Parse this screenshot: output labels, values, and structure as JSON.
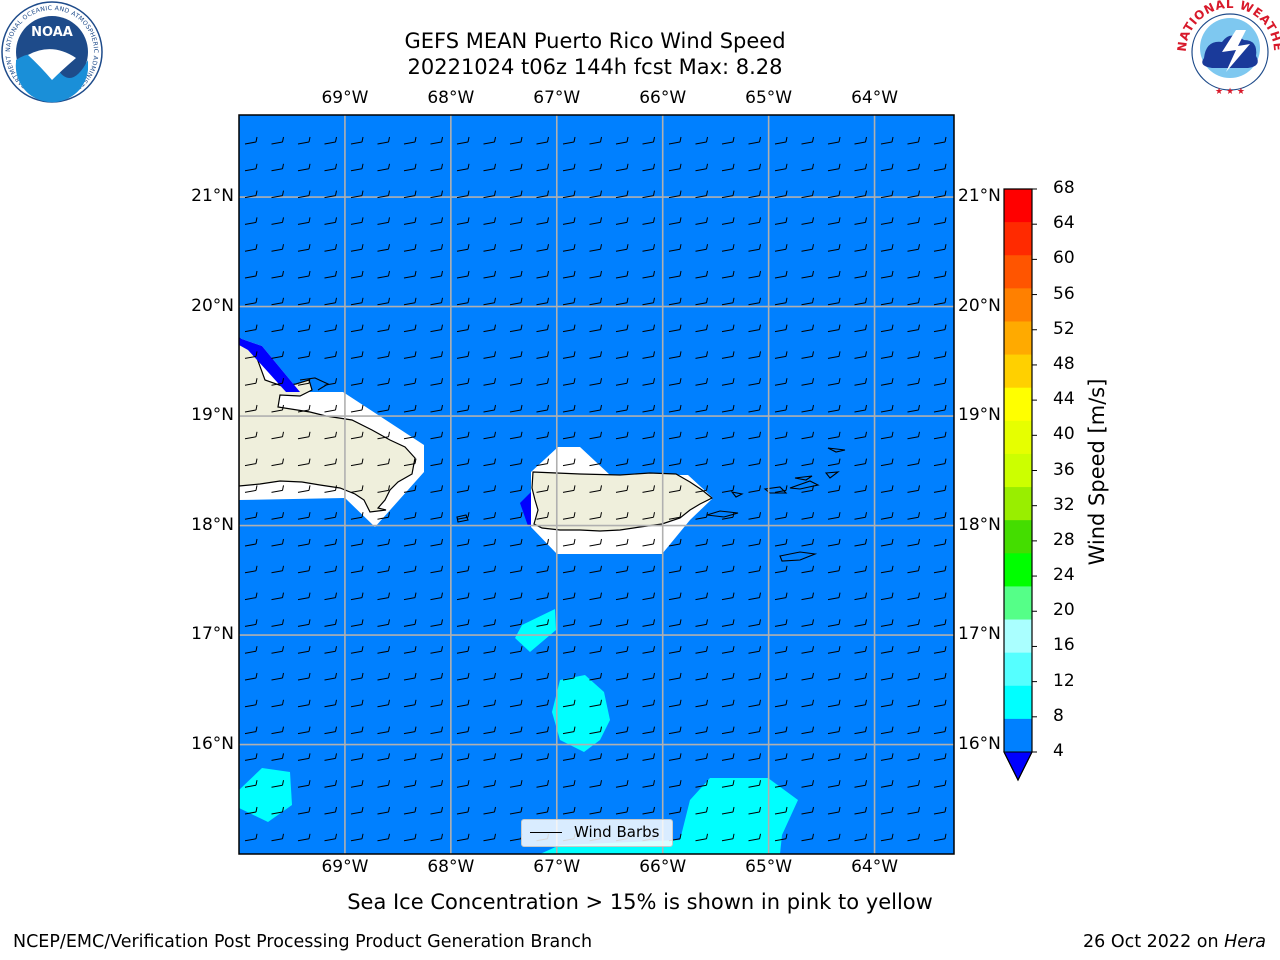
{
  "title_line1": "GEFS MEAN Puerto Rico Wind Speed",
  "title_line2": "20221024 t06z 144h fcst   Max: 8.28",
  "longitude_labels": [
    "69°W",
    "68°W",
    "67°W",
    "66°W",
    "65°W",
    "64°W"
  ],
  "latitude_labels": [
    "21°N",
    "20°N",
    "19°N",
    "18°N",
    "17°N",
    "16°N"
  ],
  "legend": {
    "wind_barbs_label": "Wind Barbs"
  },
  "colorbar": {
    "title": "Wind Speed [m/s]",
    "ticks": [
      "68",
      "64",
      "60",
      "56",
      "52",
      "48",
      "44",
      "40",
      "36",
      "32",
      "28",
      "24",
      "20",
      "16",
      "12",
      "8",
      "4"
    ],
    "colors": [
      "#ff0000",
      "#ff2a00",
      "#ff5500",
      "#ff8000",
      "#ffaa00",
      "#ffd000",
      "#ffff00",
      "#e6ff00",
      "#ccff00",
      "#99ee00",
      "#44dd00",
      "#00ff00",
      "#55ff88",
      "#aaffff",
      "#55ffff",
      "#00ffff",
      "#0080ff"
    ],
    "under_color": "#0000ff"
  },
  "caption": "Sea Ice Concentration > 15% is shown in pink to yellow",
  "footer_left": "NCEP/EMC/Verification Post Processing Product Generation Branch",
  "footer_right_prefix": "26 Oct 2022 on ",
  "footer_right_host": "Hera",
  "logo_left": {
    "name": "NOAA",
    "text": "NOAA",
    "ring_text": "NATIONAL OCEANIC AND ATMOSPHERIC ADMINISTRATION · U.S. DEPARTMENT OF COMMERCE"
  },
  "logo_right": {
    "name": "National Weather Service",
    "ring_text": "NATIONAL WEATHER SERVICE"
  },
  "colors": {
    "ocean_wind": "#0080ff",
    "high_wind": "#00ffff",
    "low_wind": "#0000ff",
    "land": "#efefdc",
    "grid": "#b0b0b0"
  },
  "map": {
    "lon_range": [
      -70,
      -63.25
    ],
    "lat_range": [
      15,
      21.75
    ]
  }
}
